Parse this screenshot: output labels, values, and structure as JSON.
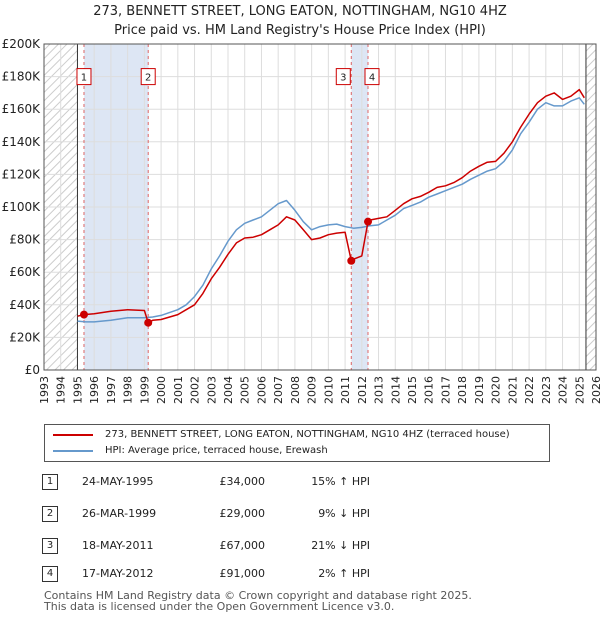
{
  "title_line1": "273, BENNETT STREET, LONG EATON, NOTTINGHAM, NG10 4HZ",
  "title_line2": "Price paid vs. HM Land Registry's House Price Index (HPI)",
  "chart_data": {
    "type": "line",
    "title": "273, BENNETT STREET, LONG EATON, NOTTINGHAM, NG10 4HZ — Price paid vs. HM Land Registry's House Price Index (HPI)",
    "xlabel": "",
    "ylabel": "",
    "xlim": [
      1993,
      2026
    ],
    "ylim": [
      0,
      200000
    ],
    "x_ticks": [
      1993,
      1994,
      1995,
      1996,
      1997,
      1998,
      1999,
      2000,
      2001,
      2002,
      2003,
      2004,
      2005,
      2006,
      2007,
      2008,
      2009,
      2010,
      2011,
      2012,
      2013,
      2014,
      2015,
      2016,
      2017,
      2018,
      2019,
      2020,
      2021,
      2022,
      2023,
      2024,
      2025,
      2026
    ],
    "y_ticks": [
      {
        "value": 0,
        "label": "£0"
      },
      {
        "value": 20000,
        "label": "£20K"
      },
      {
        "value": 40000,
        "label": "£40K"
      },
      {
        "value": 60000,
        "label": "£60K"
      },
      {
        "value": 80000,
        "label": "£80K"
      },
      {
        "value": 100000,
        "label": "£100K"
      },
      {
        "value": 120000,
        "label": "£120K"
      },
      {
        "value": 140000,
        "label": "£140K"
      },
      {
        "value": 160000,
        "label": "£160K"
      },
      {
        "value": 180000,
        "label": "£180K"
      },
      {
        "value": 200000,
        "label": "£200K"
      }
    ],
    "grid": true,
    "hatched_ranges": [
      [
        1993,
        1995.0
      ],
      [
        2025.4,
        2026
      ]
    ],
    "shaded_ranges": [
      [
        1995.4,
        1999.25
      ],
      [
        2011.38,
        2012.38
      ]
    ],
    "series": [
      {
        "name": "273, BENNETT STREET, LONG EATON, NOTTINGHAM, NG10 4HZ (terraced house)",
        "color": "#cc0000",
        "x": [
          1995.0,
          1995.39,
          1996.0,
          1997.0,
          1998.0,
          1999.0,
          1999.23,
          1999.5,
          2000.0,
          2001.0,
          2001.5,
          2002.0,
          2002.5,
          2003.0,
          2003.5,
          2004.0,
          2004.5,
          2005.0,
          2005.5,
          2006.0,
          2006.5,
          2007.0,
          2007.5,
          2008.0,
          2008.5,
          2009.0,
          2009.5,
          2010.0,
          2010.5,
          2011.0,
          2011.37,
          2011.5,
          2012.0,
          2012.37,
          2012.5,
          2013.0,
          2013.5,
          2014.0,
          2014.5,
          2015.0,
          2015.5,
          2016.0,
          2016.5,
          2017.0,
          2017.5,
          2018.0,
          2018.5,
          2019.0,
          2019.5,
          2020.0,
          2020.5,
          2021.0,
          2021.5,
          2022.0,
          2022.5,
          2023.0,
          2023.5,
          2024.0,
          2024.5,
          2025.0,
          2025.3
        ],
        "values": [
          33000,
          34000,
          34500,
          36000,
          37000,
          36500,
          29000,
          30500,
          31000,
          34000,
          37000,
          40000,
          47000,
          56000,
          63000,
          71000,
          78000,
          81000,
          81500,
          83000,
          86000,
          89000,
          94000,
          92000,
          86000,
          80000,
          81000,
          83000,
          84000,
          84500,
          67000,
          68000,
          70000,
          91000,
          92000,
          93000,
          94000,
          98000,
          102000,
          105000,
          106500,
          109000,
          112000,
          113000,
          115000,
          118000,
          122000,
          125000,
          127500,
          128000,
          133000,
          140000,
          149000,
          157000,
          164000,
          168000,
          170000,
          166000,
          168000,
          172000,
          167000
        ]
      },
      {
        "name": "HPI: Average price, terraced house, Erewash",
        "color": "#6699cc",
        "x": [
          1995.0,
          1995.5,
          1996.0,
          1997.0,
          1998.0,
          1999.0,
          1999.5,
          2000.0,
          2001.0,
          2001.5,
          2002.0,
          2002.5,
          2003.0,
          2003.5,
          2004.0,
          2004.5,
          2005.0,
          2005.5,
          2006.0,
          2006.5,
          2007.0,
          2007.5,
          2008.0,
          2008.5,
          2009.0,
          2009.5,
          2010.0,
          2010.5,
          2011.0,
          2011.5,
          2012.0,
          2012.5,
          2013.0,
          2013.5,
          2014.0,
          2014.5,
          2015.0,
          2015.5,
          2016.0,
          2016.5,
          2017.0,
          2017.5,
          2018.0,
          2018.5,
          2019.0,
          2019.5,
          2020.0,
          2020.5,
          2021.0,
          2021.5,
          2022.0,
          2022.5,
          2023.0,
          2023.5,
          2024.0,
          2024.5,
          2025.0,
          2025.3
        ],
        "values": [
          30000,
          29500,
          29500,
          30500,
          32000,
          32000,
          32500,
          33500,
          37000,
          40000,
          45000,
          52000,
          62000,
          70000,
          79000,
          86000,
          90000,
          92000,
          94000,
          98000,
          102000,
          104000,
          98000,
          91000,
          86000,
          88000,
          89000,
          89500,
          88000,
          87000,
          87500,
          88500,
          89000,
          92000,
          95000,
          99000,
          101000,
          103000,
          106000,
          108000,
          110000,
          112000,
          114000,
          117000,
          119500,
          122000,
          123500,
          128000,
          135000,
          145000,
          152000,
          160000,
          164000,
          162000,
          162000,
          165000,
          167000,
          163000
        ]
      }
    ],
    "sale_markers": [
      {
        "label": "1",
        "x": 1995.39,
        "value": 34000
      },
      {
        "label": "2",
        "x": 1999.23,
        "value": 29000
      },
      {
        "label": "3",
        "x": 2011.37,
        "value": 67000
      },
      {
        "label": "4",
        "x": 2012.37,
        "value": 91000
      }
    ]
  },
  "legend": {
    "property_label": "273, BENNETT STREET, LONG EATON, NOTTINGHAM, NG10 4HZ (terraced house)",
    "hpi_label": "HPI: Average price, terraced house, Erewash",
    "property_color": "#cc0000",
    "hpi_color": "#6699cc"
  },
  "sales": [
    {
      "num": "1",
      "date": "24-MAY-1995",
      "price": "£34,000",
      "hpi": "15% ↑ HPI"
    },
    {
      "num": "2",
      "date": "26-MAR-1999",
      "price": "£29,000",
      "hpi": "9% ↓ HPI"
    },
    {
      "num": "3",
      "date": "18-MAY-2011",
      "price": "£67,000",
      "hpi": "21% ↓ HPI"
    },
    {
      "num": "4",
      "date": "17-MAY-2012",
      "price": "£91,000",
      "hpi": "2% ↑ HPI"
    }
  ],
  "footer_line1": "Contains HM Land Registry data © Crown copyright and database right 2025.",
  "footer_line2": "This data is licensed under the Open Government Licence v3.0."
}
